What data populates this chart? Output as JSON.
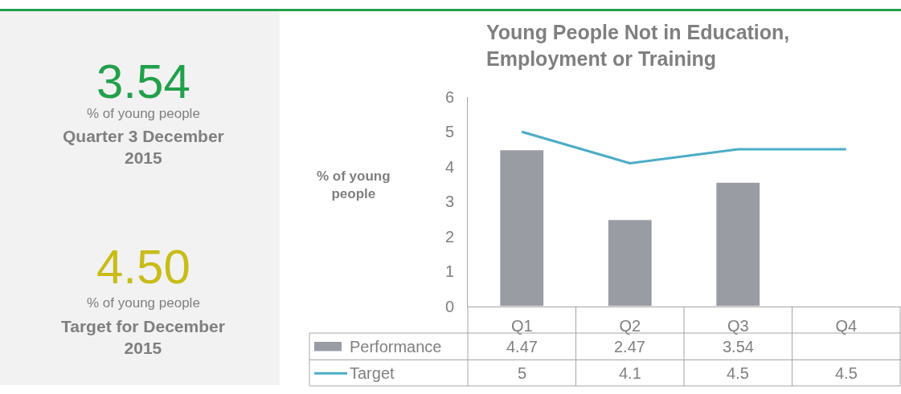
{
  "chart_data": [
    {
      "type": "other",
      "annotations": [
        "3.54",
        "% of young people",
        "Quarter 3 December 2015",
        "4.50",
        "% of young people",
        "Target for December 2015"
      ]
    },
    {
      "type": "bar",
      "title": "Young People Not in Education, Employment or Training",
      "ylabel": "% of young people",
      "categories": [
        "Q1",
        "Q2",
        "Q3",
        "Q4"
      ],
      "series": [
        {
          "name": "Performance",
          "type": "bar",
          "color": "#9a9ca4",
          "values": [
            4.47,
            2.47,
            3.54,
            null
          ]
        },
        {
          "name": "Target",
          "type": "line",
          "color": "#4bacc6",
          "values": [
            5,
            4.1,
            4.5,
            4.5
          ]
        }
      ],
      "ylim": [
        0,
        6
      ],
      "yticks": [
        0,
        1,
        2,
        3,
        4,
        5,
        6
      ],
      "legend": "bottom",
      "data_labels": true,
      "marker": "none",
      "line_style": "solid"
    }
  ]
}
